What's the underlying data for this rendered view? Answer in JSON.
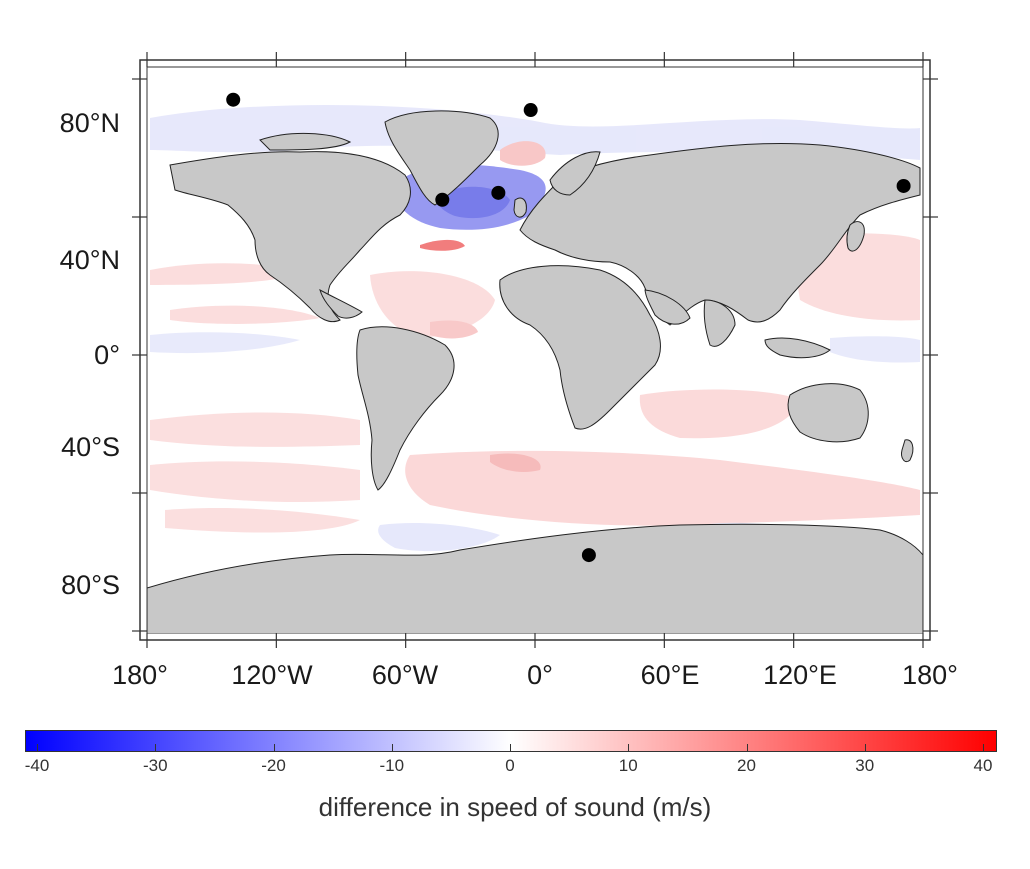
{
  "map": {
    "lat_labels": [
      "80°N",
      "40°N",
      "0°",
      "40°S",
      "80°S"
    ],
    "lon_labels": [
      "180°",
      "120°W",
      "60°W",
      "0°",
      "60°E",
      "120°E",
      "180°"
    ],
    "land_color": "#c8c8c8",
    "ocean_color": "#ffffff",
    "stations": [
      {
        "lon": -140,
        "lat": 74
      },
      {
        "lon": -2,
        "lat": 71
      },
      {
        "lon": -43,
        "lat": 45
      },
      {
        "lon": -17,
        "lat": 47
      },
      {
        "lon": 171,
        "lat": 49
      },
      {
        "lon": 25,
        "lat": -58
      }
    ]
  },
  "colorbar": {
    "title": "difference in speed of sound (m/s)",
    "ticks": [
      "-40",
      "-30",
      "-20",
      "-10",
      "0",
      "10",
      "20",
      "30",
      "40"
    ],
    "min": -40,
    "max": 40,
    "low_color": "#0000ff",
    "mid_color": "#ffffff",
    "high_color": "#ff0000"
  }
}
